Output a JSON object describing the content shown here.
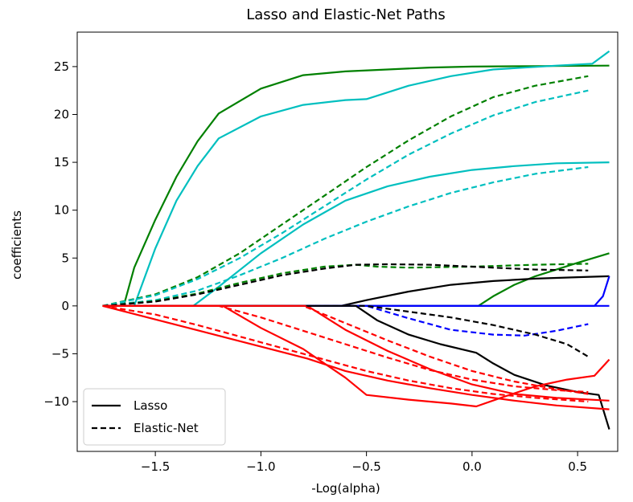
{
  "chart_data": {
    "type": "line",
    "title": "Lasso and Elastic-Net Paths",
    "xlabel": "-Log(alpha)",
    "ylabel": "coefficients",
    "xlim": [
      -1.87,
      0.69
    ],
    "ylim": [
      -15.2,
      28.6
    ],
    "xticks": [
      -1.5,
      -1.0,
      -0.5,
      0.0,
      0.5
    ],
    "xtick_labels": [
      "−1.5",
      "−1.0",
      "−0.5",
      "0.0",
      "0.5"
    ],
    "yticks": [
      -10,
      -5,
      0,
      5,
      10,
      15,
      20,
      25
    ],
    "ytick_labels": [
      "−10",
      "−5",
      "0",
      "5",
      "10",
      "15",
      "20",
      "25"
    ],
    "grid": false,
    "legend": {
      "placement": "lower-left",
      "entries": [
        {
          "label": "Lasso",
          "style": "solid",
          "color": "#000000"
        },
        {
          "label": "Elastic-Net",
          "style": "dashed",
          "color": "#000000"
        }
      ]
    },
    "series": [
      {
        "method": "lasso",
        "color": "#008000",
        "points": [
          [
            -1.75,
            0
          ],
          [
            -1.65,
            0
          ],
          [
            -1.6,
            4
          ],
          [
            -1.5,
            9
          ],
          [
            -1.4,
            13.5
          ],
          [
            -1.3,
            17.2
          ],
          [
            -1.2,
            20.1
          ],
          [
            -1.0,
            22.7
          ],
          [
            -0.8,
            24.1
          ],
          [
            -0.6,
            24.5
          ],
          [
            -0.4,
            24.7
          ],
          [
            -0.2,
            24.9
          ],
          [
            0.0,
            25.0
          ],
          [
            0.3,
            25.05
          ],
          [
            0.65,
            25.1
          ]
        ]
      },
      {
        "method": "lasso",
        "color": "#00bfbf",
        "points": [
          [
            -1.75,
            0
          ],
          [
            -1.6,
            0
          ],
          [
            -1.5,
            6
          ],
          [
            -1.4,
            11
          ],
          [
            -1.3,
            14.6
          ],
          [
            -1.2,
            17.5
          ],
          [
            -1.0,
            19.8
          ],
          [
            -0.8,
            21
          ],
          [
            -0.6,
            21.5
          ],
          [
            -0.5,
            21.6
          ],
          [
            -0.3,
            23
          ],
          [
            -0.1,
            24
          ],
          [
            0.1,
            24.7
          ],
          [
            0.4,
            25.1
          ],
          [
            0.57,
            25.3
          ],
          [
            0.65,
            26.6
          ]
        ]
      },
      {
        "method": "lasso",
        "color": "#00bfbf",
        "points": [
          [
            -1.75,
            0
          ],
          [
            -1.32,
            0
          ],
          [
            -1.2,
            2
          ],
          [
            -1.0,
            5.5
          ],
          [
            -0.8,
            8.5
          ],
          [
            -0.6,
            11
          ],
          [
            -0.4,
            12.5
          ],
          [
            -0.2,
            13.5
          ],
          [
            0.0,
            14.2
          ],
          [
            0.2,
            14.6
          ],
          [
            0.4,
            14.9
          ],
          [
            0.65,
            15.0
          ]
        ]
      },
      {
        "method": "lasso",
        "color": "#008000",
        "points": [
          [
            -1.75,
            0
          ],
          [
            0.03,
            0
          ],
          [
            0.1,
            1
          ],
          [
            0.2,
            2.2
          ],
          [
            0.3,
            3.1
          ],
          [
            0.4,
            3.8
          ],
          [
            0.5,
            4.5
          ],
          [
            0.65,
            5.5
          ]
        ]
      },
      {
        "method": "lasso",
        "color": "#000000",
        "points": [
          [
            -1.75,
            0
          ],
          [
            -0.62,
            0
          ],
          [
            -0.5,
            0.6
          ],
          [
            -0.3,
            1.5
          ],
          [
            -0.1,
            2.2
          ],
          [
            0.1,
            2.6
          ],
          [
            0.3,
            2.85
          ],
          [
            0.5,
            3.0
          ],
          [
            0.65,
            3.1
          ]
        ]
      },
      {
        "method": "lasso",
        "color": "#0000ff",
        "points": [
          [
            -1.75,
            0
          ],
          [
            0.58,
            0
          ],
          [
            0.62,
            1
          ],
          [
            0.65,
            3.1
          ]
        ]
      },
      {
        "method": "lasso",
        "color": "#0000ff",
        "points": [
          [
            -1.75,
            0
          ],
          [
            0.65,
            0
          ]
        ]
      },
      {
        "method": "lasso",
        "color": "#000000",
        "points": [
          [
            -1.75,
            0
          ],
          [
            -0.55,
            0
          ],
          [
            -0.45,
            -1.5
          ],
          [
            -0.3,
            -3
          ],
          [
            -0.15,
            -4
          ],
          [
            0.02,
            -4.9
          ],
          [
            0.1,
            -6
          ],
          [
            0.2,
            -7.2
          ],
          [
            0.35,
            -8.3
          ],
          [
            0.5,
            -9.0
          ],
          [
            0.6,
            -9.3
          ],
          [
            0.65,
            -12.9
          ]
        ]
      },
      {
        "method": "lasso",
        "color": "#ff0000",
        "points": [
          [
            -1.75,
            0
          ],
          [
            -1.18,
            0
          ],
          [
            -1.0,
            -2.3
          ],
          [
            -0.8,
            -4.5
          ],
          [
            -0.6,
            -7.5
          ],
          [
            -0.5,
            -9.3
          ],
          [
            -0.3,
            -9.8
          ],
          [
            -0.1,
            -10.2
          ],
          [
            0.02,
            -10.5
          ],
          [
            0.15,
            -9.5
          ],
          [
            0.3,
            -8.4
          ],
          [
            0.45,
            -7.7
          ],
          [
            0.58,
            -7.3
          ],
          [
            0.65,
            -5.6
          ]
        ]
      },
      {
        "method": "lasso",
        "color": "#ff0000",
        "points": [
          [
            -1.75,
            0
          ],
          [
            -0.78,
            0
          ],
          [
            -0.6,
            -2.5
          ],
          [
            -0.4,
            -4.7
          ],
          [
            -0.2,
            -6.6
          ],
          [
            0.0,
            -8.2
          ],
          [
            0.2,
            -9.2
          ],
          [
            0.4,
            -9.6
          ],
          [
            0.65,
            -9.9
          ]
        ]
      },
      {
        "method": "lasso",
        "color": "#ff0000",
        "points": [
          [
            -1.75,
            0
          ],
          [
            -0.78,
            -5.5
          ],
          [
            -0.6,
            -6.8
          ],
          [
            -0.4,
            -7.8
          ],
          [
            -0.2,
            -8.6
          ],
          [
            0.0,
            -9.3
          ],
          [
            0.2,
            -9.9
          ],
          [
            0.4,
            -10.4
          ],
          [
            0.65,
            -10.8
          ]
        ]
      },
      {
        "method": "elastic-net",
        "color": "#008000",
        "points": [
          [
            -1.75,
            0
          ],
          [
            -1.5,
            1.2
          ],
          [
            -1.3,
            3
          ],
          [
            -1.1,
            5.5
          ],
          [
            -0.9,
            8.5
          ],
          [
            -0.7,
            11.5
          ],
          [
            -0.5,
            14.5
          ],
          [
            -0.3,
            17.3
          ],
          [
            -0.1,
            19.8
          ],
          [
            0.1,
            21.8
          ],
          [
            0.3,
            23.0
          ],
          [
            0.55,
            24.0
          ]
        ]
      },
      {
        "method": "elastic-net",
        "color": "#00bfbf",
        "points": [
          [
            -1.75,
            0
          ],
          [
            -1.5,
            1.1
          ],
          [
            -1.3,
            2.8
          ],
          [
            -1.1,
            5.0
          ],
          [
            -0.9,
            7.6
          ],
          [
            -0.7,
            10.4
          ],
          [
            -0.5,
            13.2
          ],
          [
            -0.3,
            15.8
          ],
          [
            -0.1,
            18.0
          ],
          [
            0.1,
            19.9
          ],
          [
            0.3,
            21.3
          ],
          [
            0.55,
            22.5
          ]
        ]
      },
      {
        "method": "elastic-net",
        "color": "#00bfbf",
        "points": [
          [
            -1.75,
            0
          ],
          [
            -1.5,
            0.6
          ],
          [
            -1.3,
            1.6
          ],
          [
            -1.1,
            3.2
          ],
          [
            -0.9,
            5.0
          ],
          [
            -0.7,
            7.0
          ],
          [
            -0.5,
            8.8
          ],
          [
            -0.3,
            10.4
          ],
          [
            -0.1,
            11.8
          ],
          [
            0.1,
            12.9
          ],
          [
            0.3,
            13.8
          ],
          [
            0.55,
            14.5
          ]
        ]
      },
      {
        "method": "elastic-net",
        "color": "#008000",
        "points": [
          [
            -1.75,
            0
          ],
          [
            -1.5,
            0.5
          ],
          [
            -1.3,
            1.3
          ],
          [
            -1.1,
            2.4
          ],
          [
            -0.9,
            3.4
          ],
          [
            -0.7,
            4.1
          ],
          [
            -0.55,
            4.3
          ],
          [
            -0.45,
            4.1
          ],
          [
            -0.3,
            4.0
          ],
          [
            0.0,
            4.1
          ],
          [
            0.3,
            4.3
          ],
          [
            0.55,
            4.4
          ]
        ]
      },
      {
        "method": "elastic-net",
        "color": "#000000",
        "points": [
          [
            -1.75,
            0
          ],
          [
            -1.5,
            0.45
          ],
          [
            -1.3,
            1.2
          ],
          [
            -1.1,
            2.2
          ],
          [
            -0.9,
            3.2
          ],
          [
            -0.7,
            3.9
          ],
          [
            -0.55,
            4.3
          ],
          [
            -0.4,
            4.35
          ],
          [
            -0.2,
            4.3
          ],
          [
            0.0,
            4.1
          ],
          [
            0.3,
            3.8
          ],
          [
            0.55,
            3.7
          ]
        ]
      },
      {
        "method": "elastic-net",
        "color": "#0000ff",
        "points": [
          [
            -1.75,
            0
          ],
          [
            -0.5,
            0
          ],
          [
            -0.3,
            -1.3
          ],
          [
            -0.1,
            -2.5
          ],
          [
            0.1,
            -3.0
          ],
          [
            0.25,
            -3.1
          ],
          [
            0.4,
            -2.6
          ],
          [
            0.55,
            -1.9
          ]
        ]
      },
      {
        "method": "elastic-net",
        "color": "#000000",
        "points": [
          [
            -1.75,
            0
          ],
          [
            -0.5,
            0
          ],
          [
            -0.3,
            -0.6
          ],
          [
            -0.1,
            -1.2
          ],
          [
            0.1,
            -2.0
          ],
          [
            0.3,
            -3.0
          ],
          [
            0.45,
            -4.0
          ],
          [
            0.55,
            -5.3
          ]
        ]
      },
      {
        "method": "elastic-net",
        "color": "#ff0000",
        "points": [
          [
            -1.75,
            0
          ],
          [
            -1.5,
            -0.9
          ],
          [
            -1.3,
            -2.0
          ],
          [
            -1.1,
            -3.2
          ],
          [
            -0.9,
            -4.4
          ],
          [
            -0.7,
            -5.6
          ],
          [
            -0.5,
            -6.8
          ],
          [
            -0.3,
            -7.8
          ],
          [
            -0.1,
            -8.6
          ],
          [
            0.1,
            -9.2
          ],
          [
            0.3,
            -9.6
          ],
          [
            0.55,
            -10.0
          ]
        ]
      },
      {
        "method": "elastic-net",
        "color": "#ff0000",
        "points": [
          [
            -1.75,
            0
          ],
          [
            -1.2,
            0
          ],
          [
            -1.0,
            -1.2
          ],
          [
            -0.8,
            -2.6
          ],
          [
            -0.6,
            -4.0
          ],
          [
            -0.4,
            -5.4
          ],
          [
            -0.2,
            -6.7
          ],
          [
            0.0,
            -7.7
          ],
          [
            0.2,
            -8.4
          ],
          [
            0.4,
            -8.8
          ],
          [
            0.55,
            -9.0
          ]
        ]
      },
      {
        "method": "elastic-net",
        "color": "#ff0000",
        "points": [
          [
            -1.75,
            0
          ],
          [
            -0.8,
            0
          ],
          [
            -0.6,
            -1.8
          ],
          [
            -0.4,
            -3.6
          ],
          [
            -0.2,
            -5.3
          ],
          [
            0.0,
            -6.8
          ],
          [
            0.2,
            -7.9
          ],
          [
            0.4,
            -8.7
          ],
          [
            0.55,
            -9.2
          ]
        ]
      }
    ]
  }
}
